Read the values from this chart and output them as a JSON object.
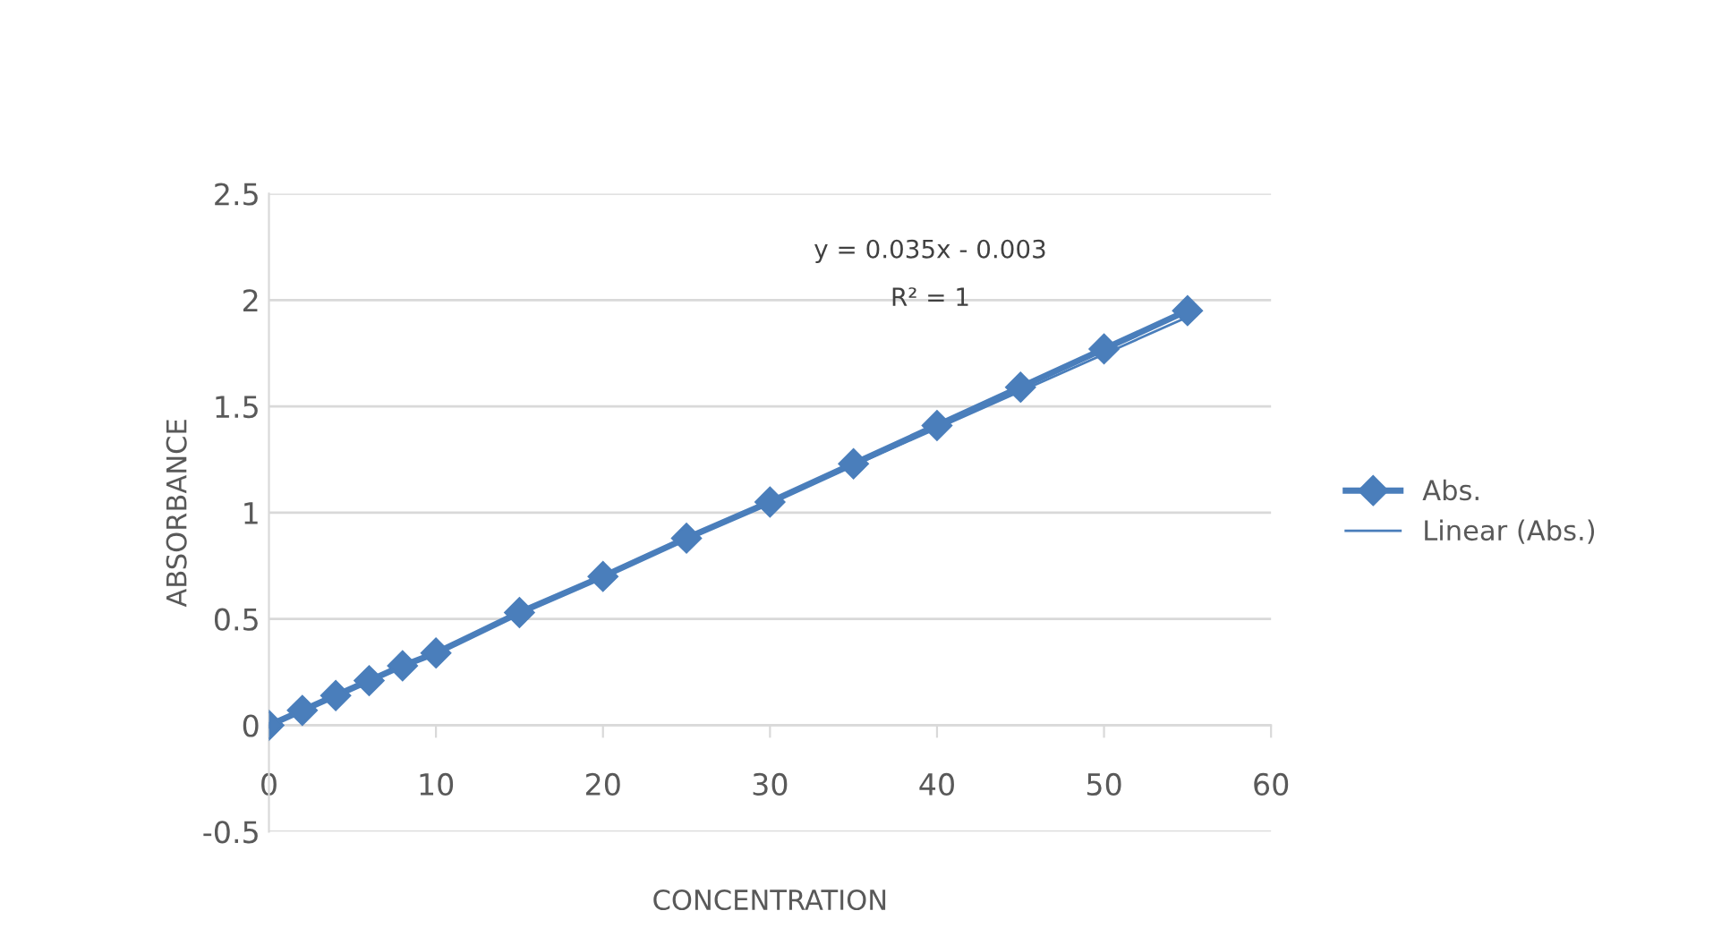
{
  "chart_data": {
    "type": "line",
    "xlabel": "CONCENTRATION",
    "ylabel": "ABSORBANCE",
    "x": [
      0,
      2,
      4,
      6,
      8,
      10,
      15,
      20,
      25,
      30,
      35,
      40,
      45,
      50,
      55
    ],
    "series": [
      {
        "name": "Abs.",
        "color": "#4a7ebb",
        "marker": "diamond",
        "values": [
          0,
          0.07,
          0.14,
          0.21,
          0.28,
          0.34,
          0.53,
          0.7,
          0.88,
          1.05,
          1.23,
          1.41,
          1.59,
          1.77,
          1.95
        ]
      },
      {
        "name": "Linear (Abs.)",
        "color": "#4a7ebb",
        "type": "line",
        "marker": "none",
        "x": [
          0,
          55
        ],
        "values": [
          0,
          1.92
        ]
      }
    ],
    "annotations": [
      "y = 0.035x - 0.003",
      "R² = 1"
    ],
    "xlim": [
      0,
      60
    ],
    "xticks": [
      0,
      10,
      20,
      30,
      40,
      50,
      60
    ],
    "ylim": [
      -0.5,
      2.5
    ],
    "yticks": [
      -0.5,
      0,
      0.5,
      1,
      1.5,
      2,
      2.5
    ],
    "grid": "y",
    "legend": "right"
  }
}
